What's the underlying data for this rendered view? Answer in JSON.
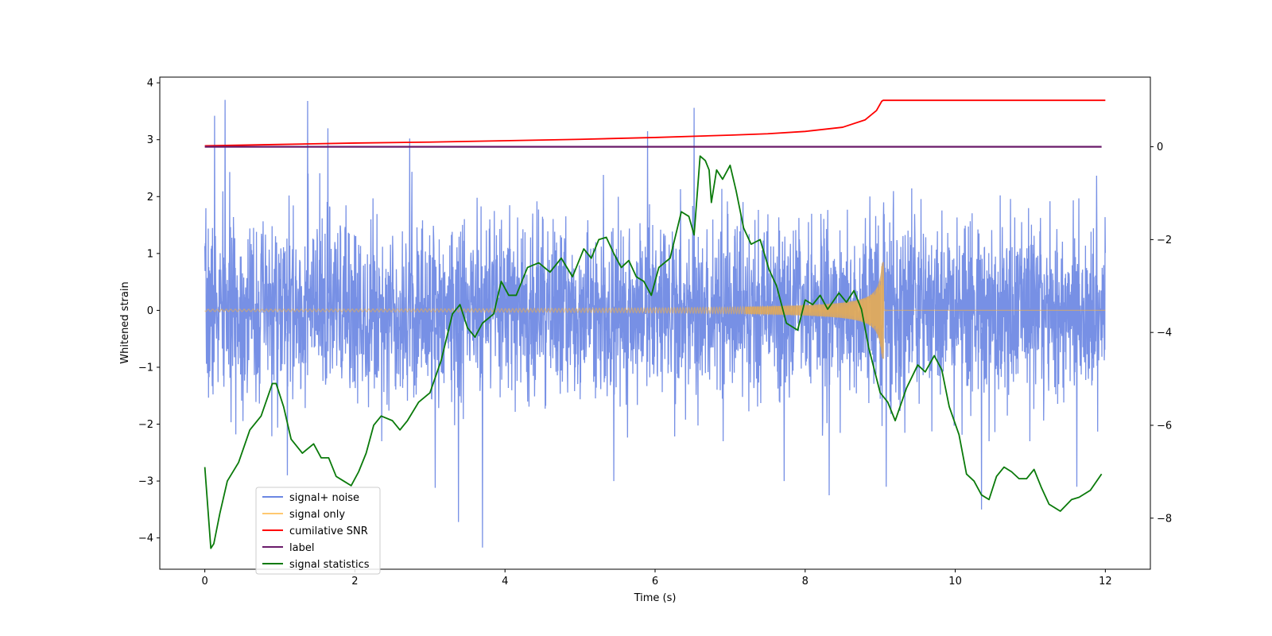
{
  "chart_data": {
    "type": "line",
    "title": "",
    "xlabel": "Time (s)",
    "ylabel": "Whitened strain",
    "ylabel_right": "",
    "xlim": [
      -0.6,
      12.6
    ],
    "ylim": [
      -4.55,
      4.1
    ],
    "ylim_right": [
      -9.1,
      1.5
    ],
    "xticks": [
      0,
      2,
      4,
      6,
      8,
      10,
      12
    ],
    "yticks": [
      -4,
      -3,
      -2,
      -1,
      0,
      1,
      2,
      3,
      4
    ],
    "yticks_right": [
      -8,
      -6,
      -4,
      -2,
      0
    ],
    "tick_labels": {
      "x": [
        "0",
        "2",
        "4",
        "6",
        "8",
        "10",
        "12"
      ],
      "y": [
        "−4",
        "−3",
        "−2",
        "−1",
        "0",
        "1",
        "2",
        "3",
        "4"
      ],
      "y_right": [
        "−8",
        "−6",
        "−4",
        "−2",
        "0"
      ]
    },
    "legend_location": "lower-left",
    "series": [
      {
        "name": "signal+ noise",
        "axis": "left",
        "color": "#6b87e3",
        "description": "dense noisy strain, roughly within -2.3..2.6 with spikes",
        "noise_seed": 7,
        "x_range": [
          0,
          12
        ],
        "spikes": [
          {
            "x": 0.27,
            "y": 3.7
          },
          {
            "x": 0.13,
            "y": 3.42
          },
          {
            "x": 1.37,
            "y": 3.68
          },
          {
            "x": 1.64,
            "y": 3.2
          },
          {
            "x": 2.73,
            "y": 3.02
          },
          {
            "x": 6.52,
            "y": 3.56
          },
          {
            "x": 5.9,
            "y": 3.15
          },
          {
            "x": 3.38,
            "y": -3.72
          },
          {
            "x": 3.7,
            "y": -4.17
          },
          {
            "x": 3.07,
            "y": -3.12
          },
          {
            "x": 9.08,
            "y": -3.1
          },
          {
            "x": 8.32,
            "y": -3.25
          },
          {
            "x": 7.72,
            "y": -3.0
          },
          {
            "x": 11.62,
            "y": -3.1
          },
          {
            "x": 10.35,
            "y": -3.5
          },
          {
            "x": 5.45,
            "y": -3.0
          },
          {
            "x": 1.1,
            "y": -2.9
          }
        ]
      },
      {
        "name": "signal only",
        "axis": "left",
        "color": "#f5b041",
        "description": "chirp signal growing to merger at t≈9.05 s",
        "merger_time": 9.05,
        "peak_amplitude": 0.85,
        "min_amplitude": 0.02
      },
      {
        "name": "cumilative SNR",
        "axis": "right",
        "color": "#ff0000",
        "x": [
          0,
          1,
          2,
          3,
          4,
          5,
          6,
          7,
          7.5,
          8,
          8.5,
          8.8,
          8.95,
          9.02,
          9.04,
          12
        ],
        "y": [
          0.02,
          0.05,
          0.08,
          0.1,
          0.13,
          0.16,
          0.2,
          0.25,
          0.28,
          0.33,
          0.42,
          0.58,
          0.78,
          0.98,
          1.0,
          1.0
        ]
      },
      {
        "name": "label",
        "axis": "right",
        "color": "#6a1b6a",
        "x": [
          0,
          11.95
        ],
        "y": [
          0,
          0
        ]
      },
      {
        "name": "signal statistics",
        "axis": "right",
        "color": "#0a7a0a",
        "x": [
          0.0,
          0.08,
          0.12,
          0.2,
          0.3,
          0.45,
          0.6,
          0.75,
          0.9,
          0.95,
          1.05,
          1.15,
          1.3,
          1.45,
          1.55,
          1.65,
          1.75,
          1.85,
          1.95,
          2.05,
          2.15,
          2.25,
          2.35,
          2.5,
          2.6,
          2.7,
          2.85,
          3.0,
          3.15,
          3.3,
          3.4,
          3.5,
          3.6,
          3.7,
          3.85,
          3.95,
          4.05,
          4.15,
          4.3,
          4.45,
          4.6,
          4.75,
          4.9,
          5.05,
          5.15,
          5.25,
          5.35,
          5.45,
          5.55,
          5.65,
          5.75,
          5.85,
          5.95,
          6.05,
          6.2,
          6.35,
          6.45,
          6.52,
          6.6,
          6.67,
          6.72,
          6.75,
          6.82,
          6.9,
          7.0,
          7.08,
          7.18,
          7.28,
          7.4,
          7.52,
          7.62,
          7.75,
          7.9,
          8.0,
          8.1,
          8.2,
          8.3,
          8.45,
          8.55,
          8.65,
          8.75,
          8.85,
          9.0,
          9.1,
          9.2,
          9.35,
          9.5,
          9.6,
          9.72,
          9.82,
          9.92,
          10.05,
          10.15,
          10.25,
          10.35,
          10.45,
          10.55,
          10.65,
          10.75,
          10.85,
          10.95,
          11.05,
          11.15,
          11.25,
          11.4,
          11.55,
          11.65,
          11.8,
          11.95
        ],
        "y": [
          -6.9,
          -8.65,
          -8.55,
          -7.9,
          -7.2,
          -6.8,
          -6.1,
          -5.8,
          -5.1,
          -5.1,
          -5.6,
          -6.3,
          -6.6,
          -6.4,
          -6.7,
          -6.7,
          -7.1,
          -7.2,
          -7.3,
          -7.0,
          -6.6,
          -6.0,
          -5.8,
          -5.9,
          -6.1,
          -5.9,
          -5.5,
          -5.3,
          -4.6,
          -3.6,
          -3.4,
          -3.9,
          -4.1,
          -3.8,
          -3.6,
          -2.9,
          -3.2,
          -3.2,
          -2.6,
          -2.5,
          -2.7,
          -2.4,
          -2.8,
          -2.2,
          -2.4,
          -2.0,
          -1.95,
          -2.3,
          -2.6,
          -2.45,
          -2.8,
          -2.9,
          -3.2,
          -2.6,
          -2.4,
          -1.4,
          -1.5,
          -1.9,
          -0.2,
          -0.3,
          -0.5,
          -1.2,
          -0.5,
          -0.7,
          -0.4,
          -0.95,
          -1.75,
          -2.1,
          -2.0,
          -2.65,
          -3.0,
          -3.8,
          -3.95,
          -3.3,
          -3.4,
          -3.2,
          -3.5,
          -3.15,
          -3.35,
          -3.1,
          -3.5,
          -4.35,
          -5.3,
          -5.5,
          -5.9,
          -5.2,
          -4.7,
          -4.85,
          -4.5,
          -4.8,
          -5.6,
          -6.2,
          -7.05,
          -7.2,
          -7.5,
          -7.6,
          -7.1,
          -6.9,
          -7.0,
          -7.15,
          -7.15,
          -6.95,
          -7.35,
          -7.7,
          -7.85,
          -7.6,
          -7.55,
          -7.4,
          -7.05
        ]
      }
    ]
  }
}
